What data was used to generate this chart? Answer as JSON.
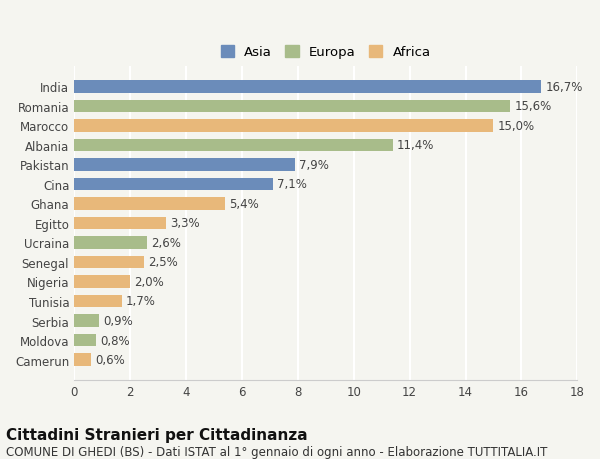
{
  "categories": [
    "India",
    "Romania",
    "Marocco",
    "Albania",
    "Pakistan",
    "Cina",
    "Ghana",
    "Egitto",
    "Ucraina",
    "Senegal",
    "Nigeria",
    "Tunisia",
    "Serbia",
    "Moldova",
    "Camerun"
  ],
  "values": [
    16.7,
    15.6,
    15.0,
    11.4,
    7.9,
    7.1,
    5.4,
    3.3,
    2.6,
    2.5,
    2.0,
    1.7,
    0.9,
    0.8,
    0.6
  ],
  "labels": [
    "16,7%",
    "15,6%",
    "15,0%",
    "11,4%",
    "7,9%",
    "7,1%",
    "5,4%",
    "3,3%",
    "2,6%",
    "2,5%",
    "2,0%",
    "1,7%",
    "0,9%",
    "0,8%",
    "0,6%"
  ],
  "colors": [
    "#6b8cba",
    "#a8bc8a",
    "#e8b87a",
    "#a8bc8a",
    "#6b8cba",
    "#6b8cba",
    "#e8b87a",
    "#e8b87a",
    "#a8bc8a",
    "#e8b87a",
    "#e8b87a",
    "#e8b87a",
    "#a8bc8a",
    "#a8bc8a",
    "#e8b87a"
  ],
  "legend": [
    {
      "label": "Asia",
      "color": "#6b8cba"
    },
    {
      "label": "Europa",
      "color": "#a8bc8a"
    },
    {
      "label": "Africa",
      "color": "#e8b87a"
    }
  ],
  "xlim": [
    0,
    18
  ],
  "xticks": [
    0,
    2,
    4,
    6,
    8,
    10,
    12,
    14,
    16,
    18
  ],
  "title": "Cittadini Stranieri per Cittadinanza",
  "subtitle": "COMUNE DI GHEDI (BS) - Dati ISTAT al 1° gennaio di ogni anno - Elaborazione TUTTITALIA.IT",
  "background_color": "#f5f5f0",
  "grid_color": "#ffffff",
  "bar_height": 0.65,
  "title_fontsize": 11,
  "subtitle_fontsize": 8.5,
  "tick_fontsize": 8.5,
  "label_fontsize": 8.5
}
